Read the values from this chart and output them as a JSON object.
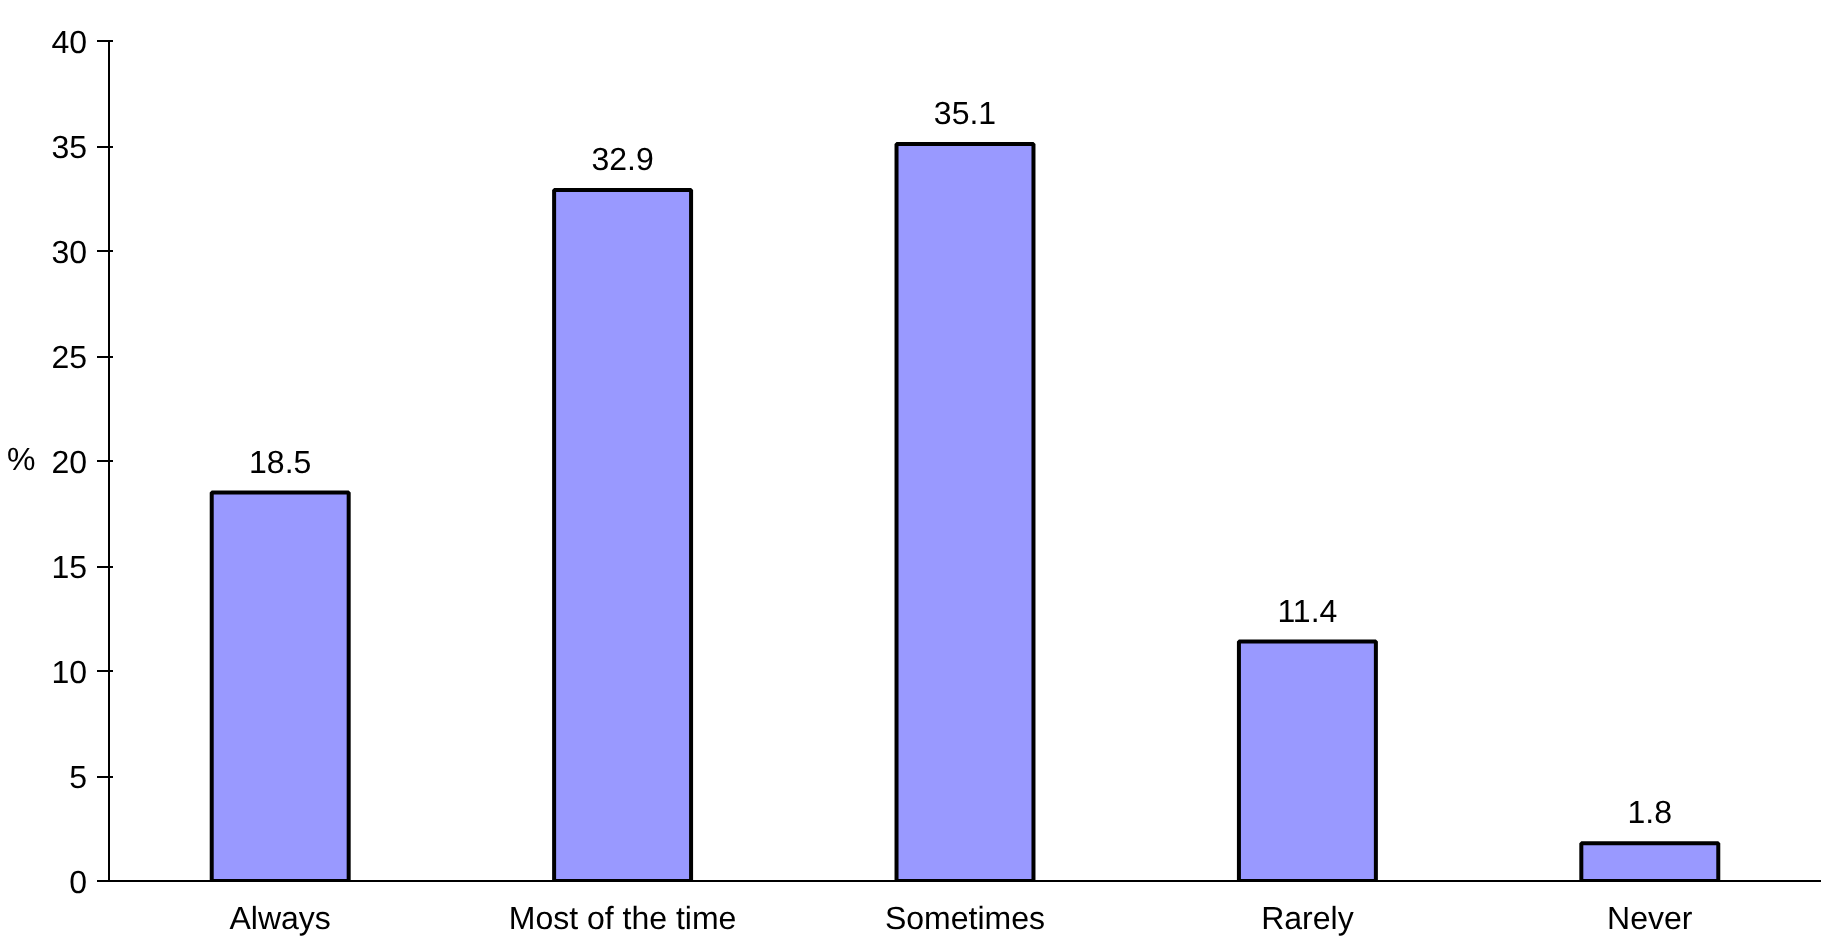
{
  "chart_data": {
    "type": "bar",
    "ylabel": "%",
    "categories": [
      "Always",
      "Most of the time",
      "Sometimes",
      "Rarely",
      "Never"
    ],
    "values": [
      18.5,
      32.9,
      35.1,
      11.4,
      1.8
    ],
    "color": "#9999ff",
    "ylim": [
      0,
      40
    ],
    "yticks": [
      0,
      5,
      10,
      15,
      20,
      25,
      30,
      35,
      40
    ],
    "grid": false,
    "data_labels": true
  }
}
